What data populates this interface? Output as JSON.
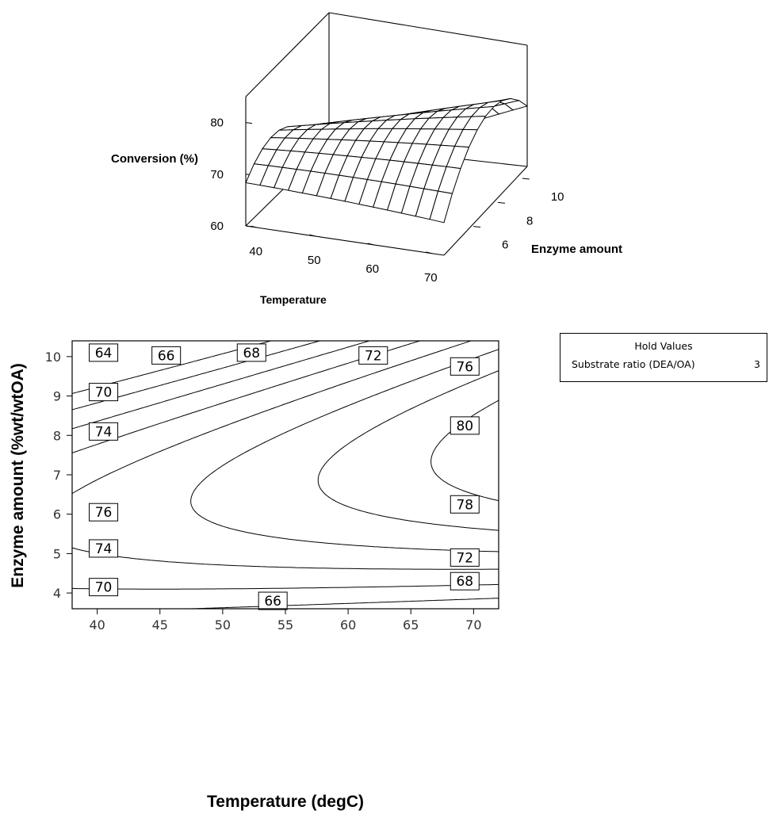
{
  "chart_data": [
    {
      "type": "surface",
      "zlabel": "Conversion (%)",
      "xlabel": "Temperature",
      "ylabel": "Enzyme amount",
      "z_ticks": [
        60,
        70,
        80
      ],
      "x_ticks": [
        40,
        50,
        60,
        70
      ],
      "y_ticks": [
        6,
        8,
        10
      ],
      "xlim": [
        38,
        72
      ],
      "ylim": [
        3.6,
        10.4
      ],
      "zlim": [
        60,
        85
      ],
      "surface_model": "quadratic response in temperature and enzyme amount, peak ~81% near 70 degC and 7.5 %wt/wtOA"
    },
    {
      "type": "contour",
      "xlabel": "Temperature (degC)",
      "ylabel": "Enzyme amount (%wt/wtOA)",
      "xlim": [
        38,
        72
      ],
      "ylim": [
        3.6,
        10.4
      ],
      "x_ticks": [
        40,
        45,
        50,
        55,
        60,
        65,
        70
      ],
      "y_ticks": [
        4,
        5,
        6,
        7,
        8,
        9,
        10
      ],
      "levels": [
        64,
        66,
        68,
        70,
        72,
        74,
        76,
        78,
        80
      ],
      "contour_labels": [
        {
          "text": "64",
          "x": 40.5,
          "y": 10.1
        },
        {
          "text": "66",
          "x": 45.5,
          "y": 10.03
        },
        {
          "text": "68",
          "x": 52.3,
          "y": 10.1
        },
        {
          "text": "72",
          "x": 62.0,
          "y": 10.03
        },
        {
          "text": "76",
          "x": 69.3,
          "y": 9.75
        },
        {
          "text": "70",
          "x": 40.5,
          "y": 9.1
        },
        {
          "text": "74",
          "x": 40.5,
          "y": 8.1
        },
        {
          "text": "80",
          "x": 69.3,
          "y": 8.25
        },
        {
          "text": "78",
          "x": 69.3,
          "y": 6.25
        },
        {
          "text": "76",
          "x": 40.5,
          "y": 6.05
        },
        {
          "text": "74",
          "x": 40.5,
          "y": 5.13
        },
        {
          "text": "72",
          "x": 69.3,
          "y": 4.9
        },
        {
          "text": "70",
          "x": 40.5,
          "y": 4.15
        },
        {
          "text": "68",
          "x": 69.3,
          "y": 4.3
        },
        {
          "text": "66",
          "x": 54.0,
          "y": 3.8
        }
      ]
    }
  ],
  "hold_values": {
    "title": "Hold Values",
    "factor": "Substrate ratio (DEA/OA)",
    "value": "3"
  }
}
